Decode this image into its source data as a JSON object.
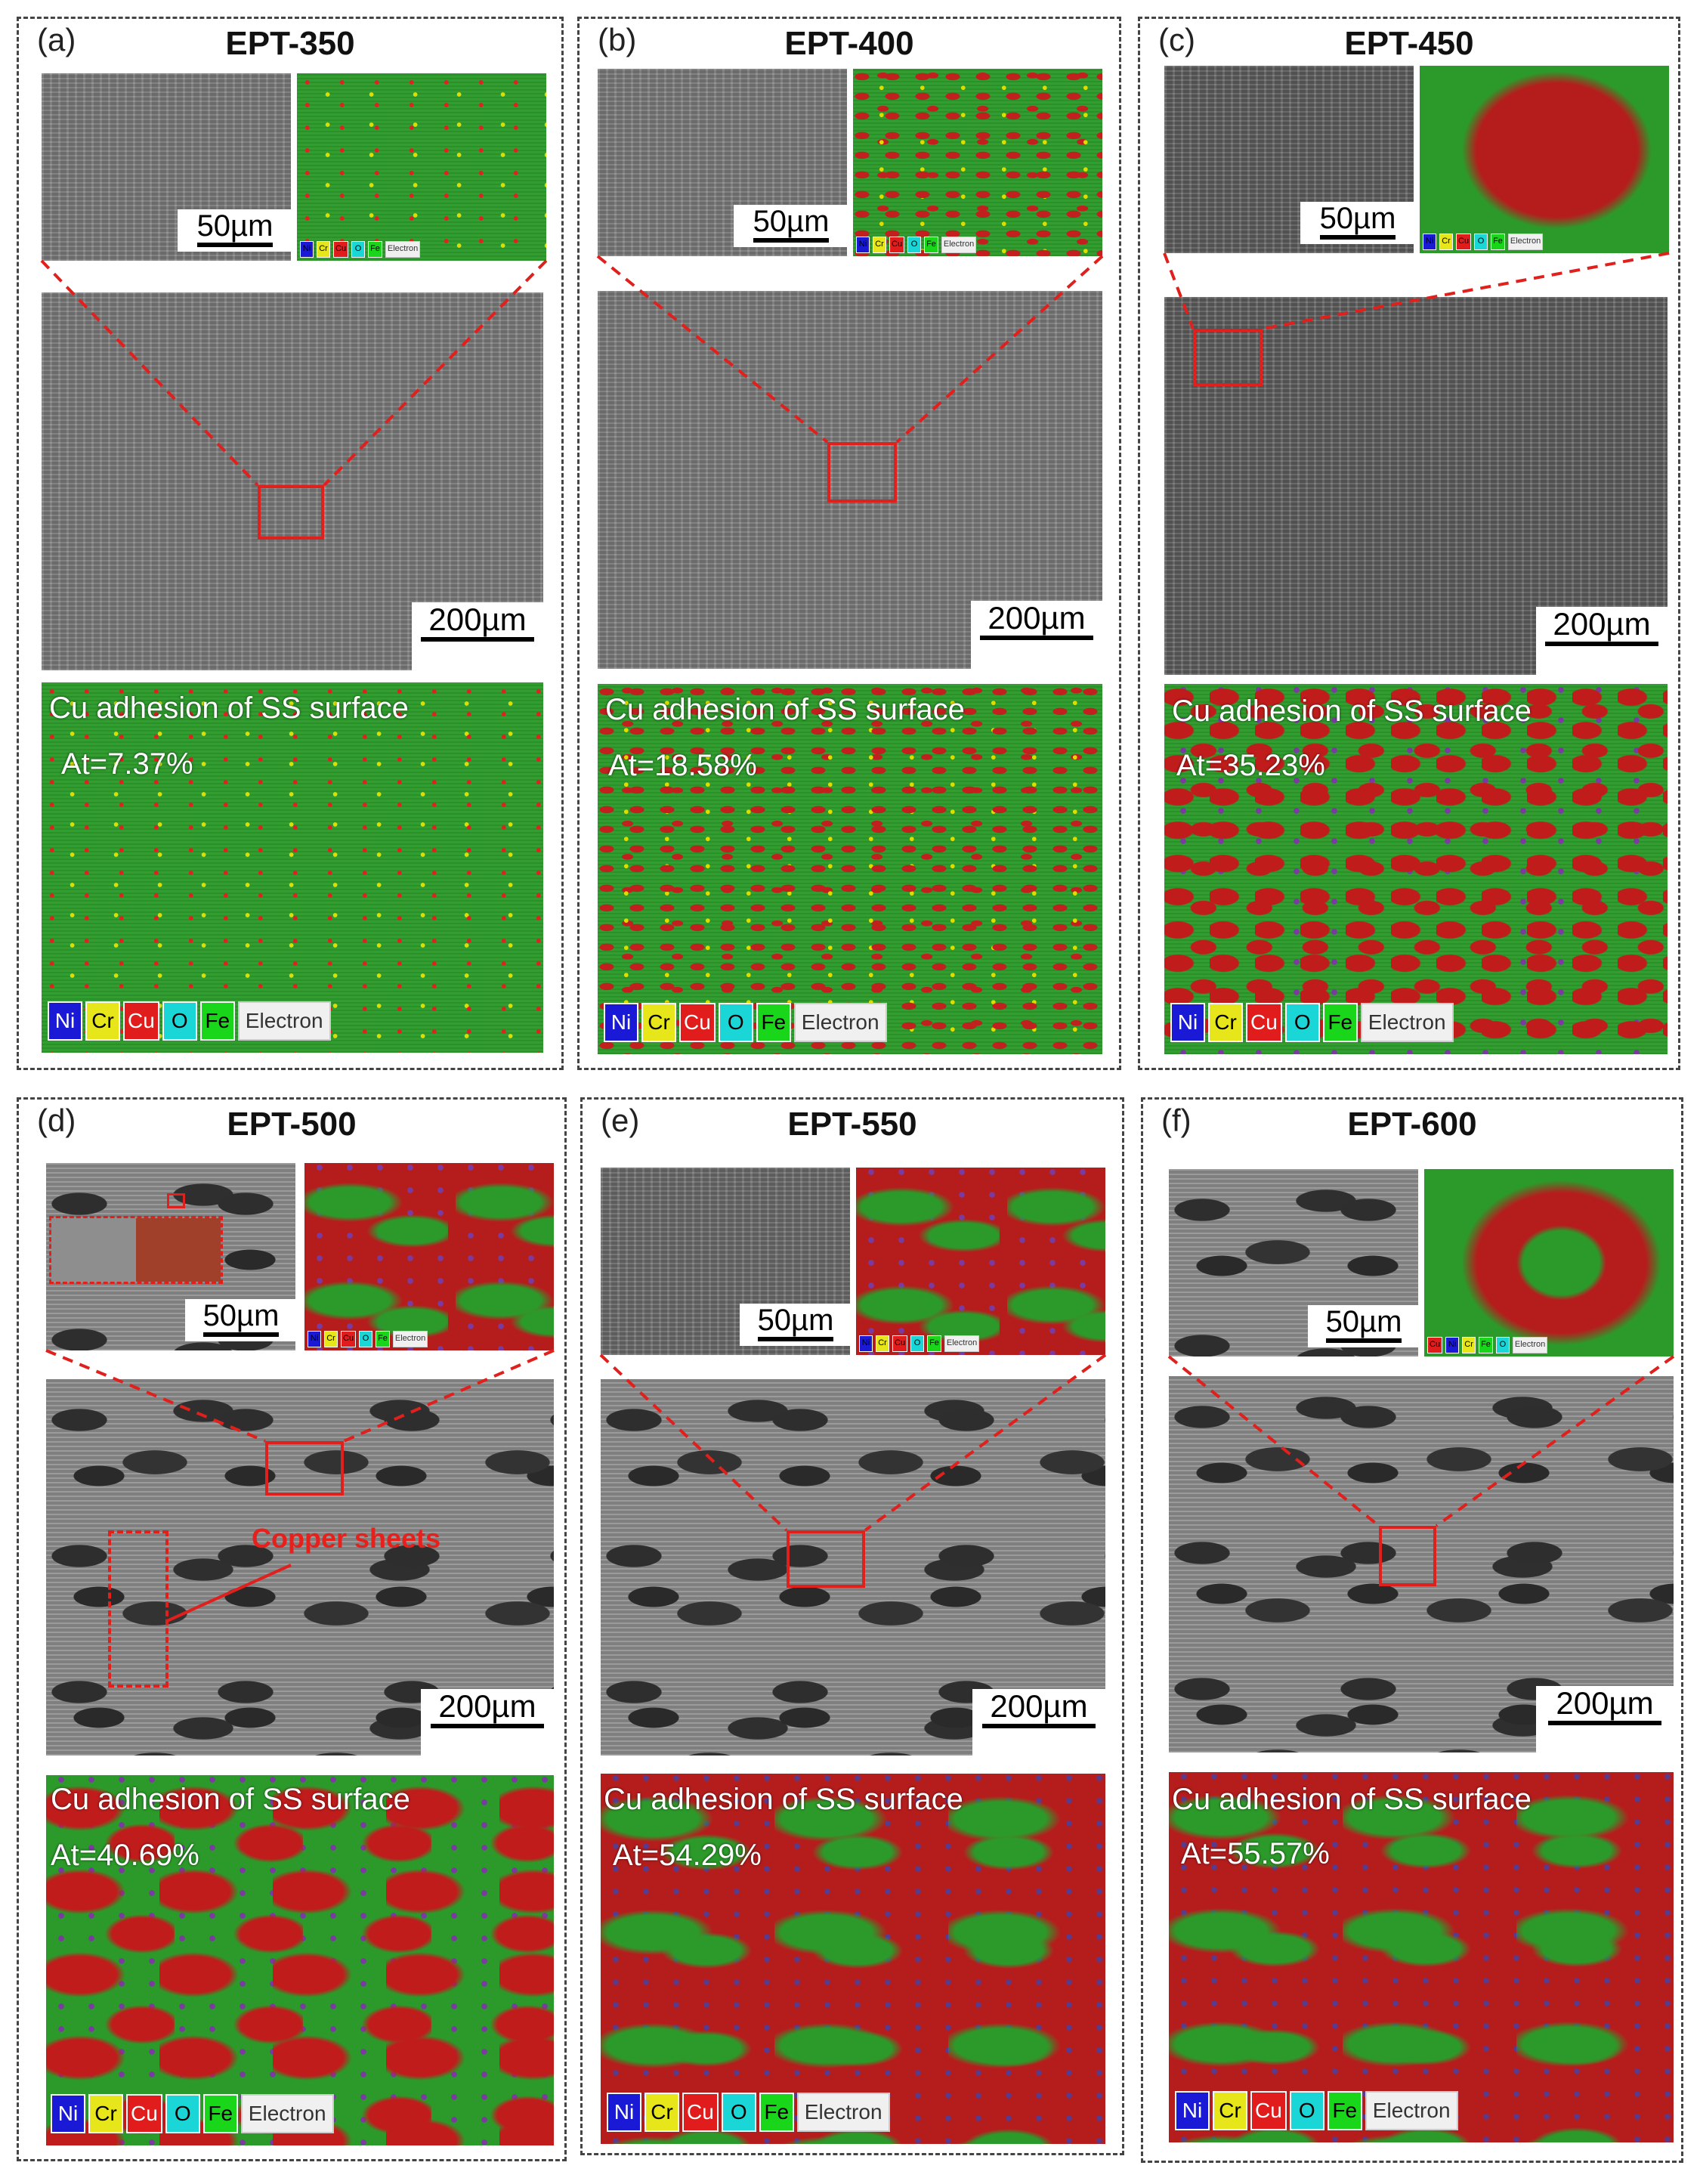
{
  "panels": [
    {
      "label": "(a)",
      "title": "EPT-350",
      "scale_small": "50µm",
      "scale_large": "200µm",
      "map_title": "Cu adhesion of SS surface",
      "at": "At=7.37%"
    },
    {
      "label": "(b)",
      "title": "EPT-400",
      "scale_small": "50µm",
      "scale_large": "200µm",
      "map_title": "Cu adhesion of SS surface",
      "at": "At=18.58%"
    },
    {
      "label": "(c)",
      "title": "EPT-450",
      "scale_small": "50µm",
      "scale_large": "200µm",
      "map_title": "Cu adhesion of SS surface",
      "at": "At=35.23%"
    },
    {
      "label": "(d)",
      "title": "EPT-500",
      "scale_small": "50µm",
      "scale_large": "200µm",
      "map_title": "Cu adhesion of SS surface",
      "at": "At=40.69%",
      "annotation": "Copper sheets"
    },
    {
      "label": "(e)",
      "title": "EPT-550",
      "scale_small": "50µm",
      "scale_large": "200µm",
      "map_title": "Cu adhesion of SS surface",
      "at": "At=54.29%"
    },
    {
      "label": "(f)",
      "title": "EPT-600",
      "scale_small": "50µm",
      "scale_large": "200µm",
      "map_title": "Cu adhesion of SS surface",
      "at": "At=55.57%"
    }
  ],
  "legend": [
    {
      "label": "Ni",
      "color": "#1a1ad6"
    },
    {
      "label": "Cr",
      "color": "#e6e61a"
    },
    {
      "label": "Cu",
      "color": "#e01c1c"
    },
    {
      "label": "O",
      "color": "#1ad6d6"
    },
    {
      "label": "Fe",
      "color": "#1ad61a"
    },
    {
      "label": "Electron",
      "color": "#f0f0f0"
    }
  ],
  "legend_f_inset": [
    {
      "label": "Cu",
      "color": "#e01c1c"
    },
    {
      "label": "Ni",
      "color": "#1a1ad6"
    },
    {
      "label": "Cr",
      "color": "#e6e61a"
    },
    {
      "label": "Fe",
      "color": "#1ad61a"
    },
    {
      "label": "O",
      "color": "#1ad6d6"
    },
    {
      "label": "Electron",
      "color": "#f0f0f0"
    }
  ]
}
